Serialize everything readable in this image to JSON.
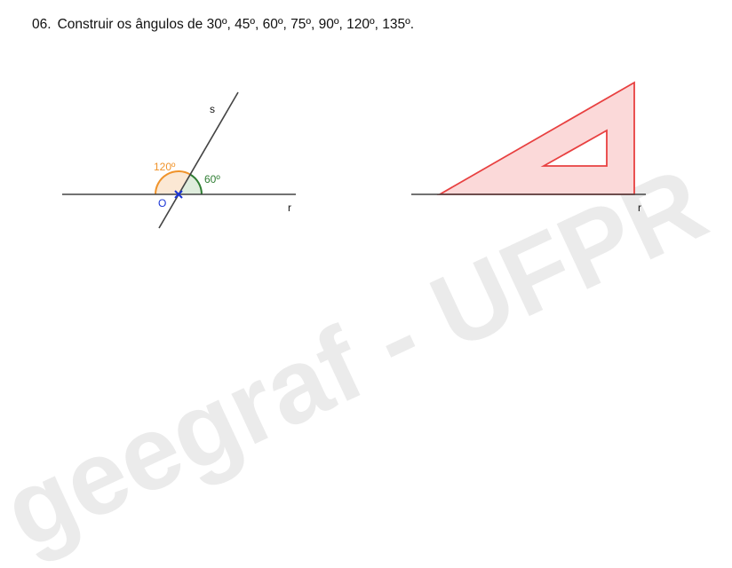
{
  "exercise": {
    "number": "06.",
    "statement": "Construir os ângulos de 30º, 45º, 60º, 75º, 90º, 120º, 135º."
  },
  "left_figure": {
    "line_s_label": "s",
    "line_r_label": "r",
    "point_label": "O",
    "angle_obtuse_label": "120º",
    "angle_acute_label": "60º",
    "angle_obtuse_color": "#f0932a",
    "angle_acute_color": "#2e7d32",
    "point_color": "#1a35d6"
  },
  "right_figure": {
    "line_r_label": "r",
    "set_square_color": "#e84040",
    "set_square_fill": "#fbd9d9"
  },
  "watermark": {
    "text": "geegraf - UFPR",
    "color": "#e9e9e9"
  }
}
